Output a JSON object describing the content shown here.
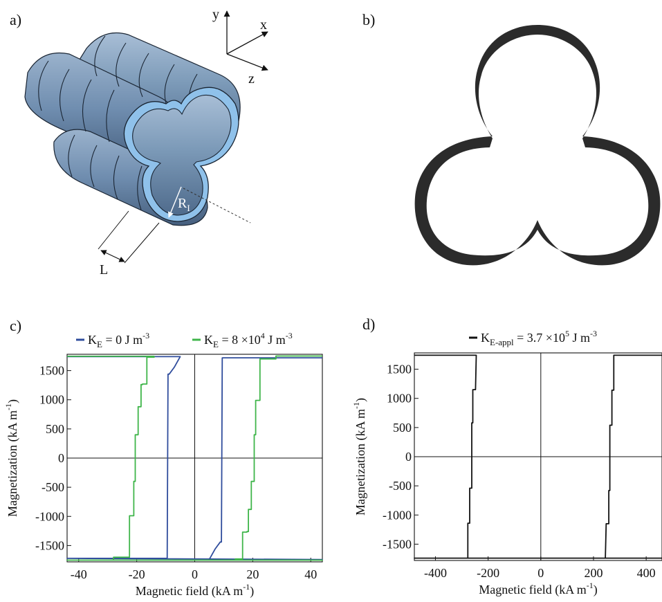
{
  "panels": {
    "a": {
      "label": "a)"
    },
    "b": {
      "label": "b)"
    },
    "c": {
      "label": "c)"
    },
    "d": {
      "label": "d)"
    }
  },
  "diagram_a": {
    "axes": {
      "y": "y",
      "x": "x",
      "z": "z"
    },
    "radius_label": "R",
    "radius_sub": "I",
    "length_label": "L",
    "tube_color": "#7c9ab8",
    "tube_edge_color": "#8fc1ea"
  },
  "diagram_b": {
    "color": "#2b2b2b"
  },
  "chart_data": [
    {
      "type": "line",
      "panel": "c",
      "xlabel": "Magnetic field (kA m",
      "xlabel_sup": "-1",
      "xlabel_end": ")",
      "ylabel": "Magnetization (kA m",
      "ylabel_sup": "-1",
      "ylabel_end": ")",
      "xlim": [
        -44,
        44
      ],
      "ylim": [
        -1780,
        1780
      ],
      "xticks": [
        -40,
        -20,
        0,
        20,
        40
      ],
      "yticks": [
        -1500,
        -1000,
        -500,
        0,
        500,
        1000,
        1500
      ],
      "legend_position": "top",
      "series": [
        {
          "name": "K",
          "name_sub": "E",
          "name_rest": " = 0  J m",
          "name_sup": "-3",
          "color": "#2f4c9c",
          "points": [
            [
              -44,
              1740
            ],
            [
              -5,
              1740
            ],
            [
              -7,
              1560
            ],
            [
              -8.8,
              1440
            ],
            [
              -9.2,
              1440
            ],
            [
              -9.5,
              -1720
            ],
            [
              -44,
              -1720
            ],
            [
              44,
              -1740
            ],
            [
              5,
              -1740
            ],
            [
              7,
              -1560
            ],
            [
              8.8,
              -1440
            ],
            [
              9.2,
              -1440
            ],
            [
              9.5,
              1720
            ],
            [
              44,
              1720
            ]
          ]
        },
        {
          "name": "K",
          "name_sub": "E",
          "name_rest": " = 8 ×10",
          "name_sup2": "4",
          "name_rest2": " J m",
          "name_sup": "-3",
          "color": "#3fb54a",
          "points": [
            [
              -44,
              1745
            ],
            [
              -14,
              1745
            ],
            [
              -14,
              1730
            ],
            [
              -16.5,
              1730
            ],
            [
              -16.5,
              1270
            ],
            [
              -18,
              1270
            ],
            [
              -18,
              1260
            ],
            [
              -18.5,
              1260
            ],
            [
              -18.5,
              880
            ],
            [
              -19.5,
              880
            ],
            [
              -19.5,
              400
            ],
            [
              -20.5,
              400
            ],
            [
              -20.5,
              -400
            ],
            [
              -21,
              -400
            ],
            [
              -21,
              -990
            ],
            [
              -22.5,
              -990
            ],
            [
              -22.5,
              -1700
            ],
            [
              -28,
              -1700
            ],
            [
              -28,
              -1750
            ],
            [
              -44,
              -1750
            ],
            [
              44,
              -1750
            ],
            [
              14,
              -1750
            ],
            [
              14,
              -1730
            ],
            [
              16.5,
              -1730
            ],
            [
              16.5,
              -1270
            ],
            [
              18,
              -1270
            ],
            [
              18,
              -1260
            ],
            [
              18.5,
              -1260
            ],
            [
              18.5,
              -880
            ],
            [
              19.5,
              -880
            ],
            [
              19.5,
              -400
            ],
            [
              20.5,
              -400
            ],
            [
              20.5,
              400
            ],
            [
              21,
              400
            ],
            [
              21,
              990
            ],
            [
              22.5,
              990
            ],
            [
              22.5,
              1700
            ],
            [
              28,
              1700
            ],
            [
              28,
              1750
            ],
            [
              44,
              1750
            ]
          ]
        }
      ]
    },
    {
      "type": "line",
      "panel": "d",
      "xlabel": "Magnetic field (kA m",
      "xlabel_sup": "-1",
      "xlabel_end": ")",
      "ylabel": "Magnetization (kA m",
      "ylabel_sup": "-1",
      "ylabel_end": ")",
      "xlim": [
        -480,
        460
      ],
      "ylim": [
        -1780,
        1780
      ],
      "xticks": [
        -400,
        -200,
        0,
        200,
        400
      ],
      "yticks": [
        -1500,
        -1000,
        -500,
        0,
        500,
        1000,
        1500
      ],
      "legend_position": "top",
      "series": [
        {
          "name": "K",
          "name_sub": "E-appl",
          "name_rest": " = 3.7 ×10",
          "name_sup2": "5",
          "name_rest2": " J m",
          "name_sup": "-3",
          "color": "#111111",
          "points": [
            [
              -480,
              1740
            ],
            [
              -245,
              1740
            ],
            [
              -248,
              1150
            ],
            [
              -258,
              1150
            ],
            [
              -258,
              580
            ],
            [
              -262,
              580
            ],
            [
              -262,
              -540
            ],
            [
              -270,
              -540
            ],
            [
              -270,
              -1140
            ],
            [
              -277,
              -1140
            ],
            [
              -277,
              -1740
            ],
            [
              -480,
              -1740
            ],
            [
              460,
              -1740
            ],
            [
              245,
              -1740
            ],
            [
              248,
              -1150
            ],
            [
              258,
              -1150
            ],
            [
              258,
              -580
            ],
            [
              262,
              -580
            ],
            [
              262,
              540
            ],
            [
              270,
              540
            ],
            [
              270,
              1140
            ],
            [
              277,
              1140
            ],
            [
              277,
              1740
            ],
            [
              460,
              1740
            ]
          ]
        }
      ]
    }
  ]
}
